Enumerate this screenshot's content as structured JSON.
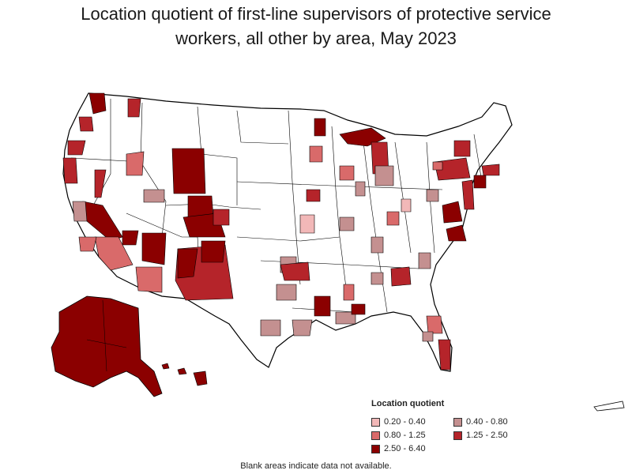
{
  "title_line1": "Location quotient of first-line supervisors of protective service",
  "title_line2": "workers, all other by area, May 2023",
  "legend": {
    "title": "Location quotient",
    "items": [
      {
        "label": "0.20 - 0.40",
        "color": "#f2b8b8"
      },
      {
        "label": "0.40 - 0.80",
        "color": "#c49090"
      },
      {
        "label": "0.80 - 1.25",
        "color": "#d96a6a"
      },
      {
        "label": "1.25 - 2.50",
        "color": "#b5242a"
      },
      {
        "label": "2.50 - 6.40",
        "color": "#8b0000"
      }
    ]
  },
  "footnote": "Blank areas indicate data not available.",
  "colors": {
    "border": "#000000",
    "blank": "#ffffff",
    "q1": "#f2b8b8",
    "q2": "#c49090",
    "q3": "#d96a6a",
    "q4": "#b5242a",
    "q5": "#8b0000"
  }
}
